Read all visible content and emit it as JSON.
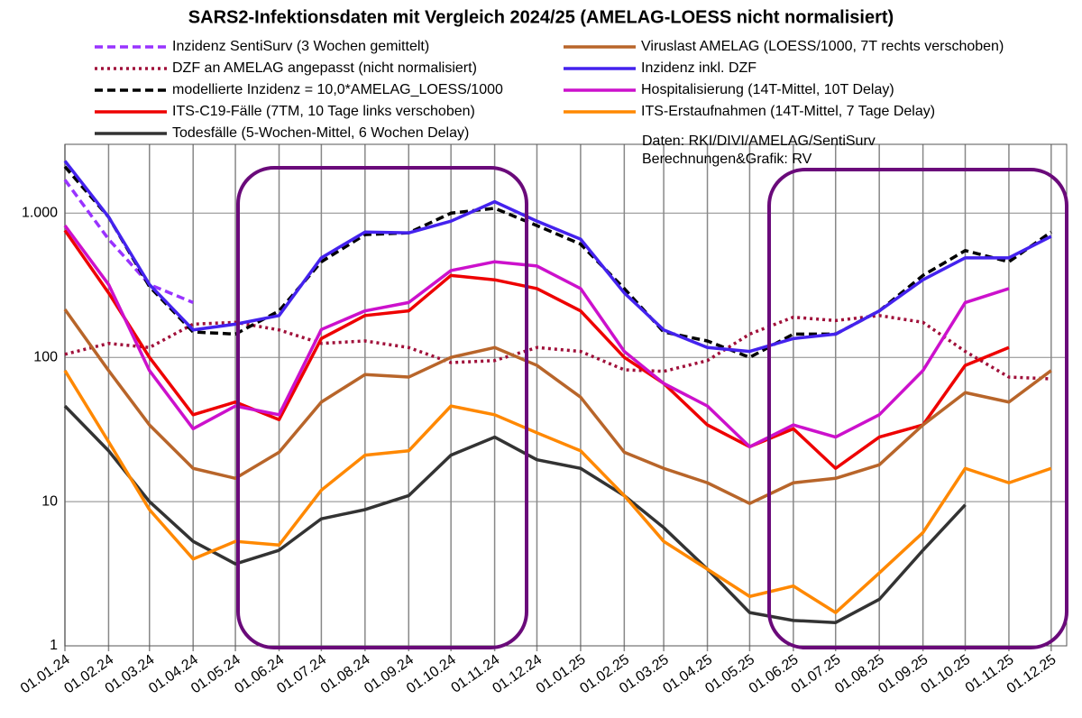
{
  "chart_data": {
    "type": "line",
    "title": "SARS2-Infektionsdaten mit Vergleich 2024/25 (AMELAG-LOESS nicht normalisiert)",
    "annotations": [
      "Daten: RKI/DIVI/AMELAG/SentiSurv",
      "Berechnungen&Grafik: RV"
    ],
    "log_y": true,
    "grid": true,
    "x": [
      "2024-01-01",
      "2024-02-01",
      "2024-03-01",
      "2024-04-01",
      "2024-05-01",
      "2024-06-01",
      "2024-07-01",
      "2024-08-01",
      "2024-09-01",
      "2024-10-01",
      "2024-11-01",
      "2024-12-01",
      "2025-01-01",
      "2025-02-01",
      "2025-03-01",
      "2025-04-01",
      "2025-05-01",
      "2025-06-01",
      "2025-07-01",
      "2025-08-01",
      "2025-09-01",
      "2025-10-01",
      "2025-11-01",
      "2025-12-01"
    ],
    "xlim": [
      "2024-01-01",
      "2025-12-12"
    ],
    "xticks": [
      {
        "value": "2024-01-01",
        "label": "01.01.24"
      },
      {
        "value": "2024-02-01",
        "label": "01.02.24"
      },
      {
        "value": "2024-03-01",
        "label": "01.03.24"
      },
      {
        "value": "2024-04-01",
        "label": "01.04.24"
      },
      {
        "value": "2024-05-01",
        "label": "01.05.24"
      },
      {
        "value": "2024-06-01",
        "label": "01.06.24"
      },
      {
        "value": "2024-07-01",
        "label": "01.07.24"
      },
      {
        "value": "2024-08-01",
        "label": "01.08.24"
      },
      {
        "value": "2024-09-01",
        "label": "01.09.24"
      },
      {
        "value": "2024-10-01",
        "label": "01.10.24"
      },
      {
        "value": "2024-11-01",
        "label": "01.11.24"
      },
      {
        "value": "2024-12-01",
        "label": "01.12.24"
      },
      {
        "value": "2025-01-01",
        "label": "01.01.25"
      },
      {
        "value": "2025-02-01",
        "label": "01.02.25"
      },
      {
        "value": "2025-03-01",
        "label": "01.03.25"
      },
      {
        "value": "2025-04-01",
        "label": "01.04.25"
      },
      {
        "value": "2025-05-01",
        "label": "01.05.25"
      },
      {
        "value": "2025-06-01",
        "label": "01.06.25"
      },
      {
        "value": "2025-07-01",
        "label": "01.07.25"
      },
      {
        "value": "2025-08-01",
        "label": "01.08.25"
      },
      {
        "value": "2025-09-01",
        "label": "01.09.25"
      },
      {
        "value": "2025-10-01",
        "label": "01.10.25"
      },
      {
        "value": "2025-11-01",
        "label": "01.11.25"
      },
      {
        "value": "2025-12-01",
        "label": "01.12.25"
      }
    ],
    "ylim": [
      1,
      3000
    ],
    "yticks": [
      1,
      10,
      100,
      {
        "value": 1000,
        "label": "1.000"
      }
    ],
    "series": [
      {
        "name": "Inzidenz SentiSurv (3 Wochen gemittelt)",
        "color": "#9933ff",
        "dash": "dashed",
        "values": [
          1700,
          660,
          320,
          240,
          null,
          null,
          null,
          null,
          null,
          null,
          null,
          null,
          null,
          null,
          null,
          null,
          null,
          null,
          null,
          null,
          null,
          null,
          null,
          null
        ]
      },
      {
        "name": "DZF an AMELAG angepasst (nicht normalisiert)",
        "color": "#a0103a",
        "dash": "dotted",
        "values": [
          105,
          125,
          117,
          170,
          175,
          155,
          125,
          130,
          117,
          92,
          95,
          117,
          110,
          82,
          80,
          95,
          145,
          190,
          180,
          195,
          175,
          110,
          73,
          71
        ]
      },
      {
        "name": "modellierte Inzidenz = 10,0*AMELAG_LOESS/1000",
        "color": "#000000",
        "dash": "dashed",
        "values": [
          2100,
          940,
          310,
          150,
          145,
          210,
          460,
          710,
          730,
          1000,
          1080,
          820,
          610,
          300,
          150,
          130,
          100,
          145,
          145,
          210,
          370,
          550,
          460,
          740
        ]
      },
      {
        "name": "ITS-C19-Fälle (7TM, 10 Tage links verschoben)",
        "color": "#ee0000",
        "dash": "solid",
        "values": [
          760,
          280,
          100,
          40,
          49,
          37,
          135,
          195,
          210,
          370,
          345,
          300,
          210,
          100,
          66,
          34,
          24,
          32,
          17,
          28,
          34,
          88,
          117,
          null
        ]
      },
      {
        "name": "Todesfälle (5-Wochen-Mittel, 6 Wochen Delay)",
        "color": "#333333",
        "dash": "solid",
        "values": [
          46,
          22.5,
          10,
          5.3,
          3.7,
          4.6,
          7.6,
          8.8,
          11,
          21,
          28,
          19.5,
          17,
          11,
          6.6,
          3.4,
          1.7,
          1.5,
          1.45,
          2.1,
          4.6,
          9.5,
          null,
          null
        ]
      },
      {
        "name": "Viruslast AMELAG (LOESS/1000, 7T rechts verschoben)",
        "color": "#b8652a",
        "dash": "solid",
        "values": [
          215,
          81,
          34,
          17,
          14.5,
          22,
          49,
          76,
          73,
          100,
          117,
          88,
          53,
          22,
          17,
          13.5,
          9.7,
          13.5,
          14.5,
          18,
          34,
          57,
          49,
          81
        ]
      },
      {
        "name": "Inzidenz inkl. DZF",
        "color": "#4422ee",
        "dash": "solid",
        "values": [
          2300,
          940,
          320,
          155,
          170,
          195,
          490,
          740,
          730,
          880,
          1200,
          880,
          660,
          280,
          155,
          117,
          110,
          135,
          145,
          210,
          345,
          490,
          490,
          690
        ]
      },
      {
        "name": "Hospitalisierung (14T-Mittel, 10T Delay)",
        "color": "#cc11cc",
        "dash": "solid",
        "values": [
          820,
          320,
          81,
          32,
          46,
          40,
          156,
          210,
          240,
          400,
          460,
          430,
          300,
          110,
          66,
          46,
          24,
          34,
          28,
          40,
          81,
          240,
          300,
          null
        ]
      },
      {
        "name": "ITS-Erstaufnahmen (14T-Mittel, 7 Tage Delay)",
        "color": "#ff8800",
        "dash": "solid",
        "values": [
          81,
          26,
          8.8,
          4,
          5.3,
          5,
          12,
          21,
          22.5,
          46,
          40,
          30,
          22.5,
          11,
          5.3,
          3.4,
          2.2,
          2.6,
          1.7,
          3.2,
          6.1,
          17,
          13.5,
          17
        ]
      }
    ]
  }
}
